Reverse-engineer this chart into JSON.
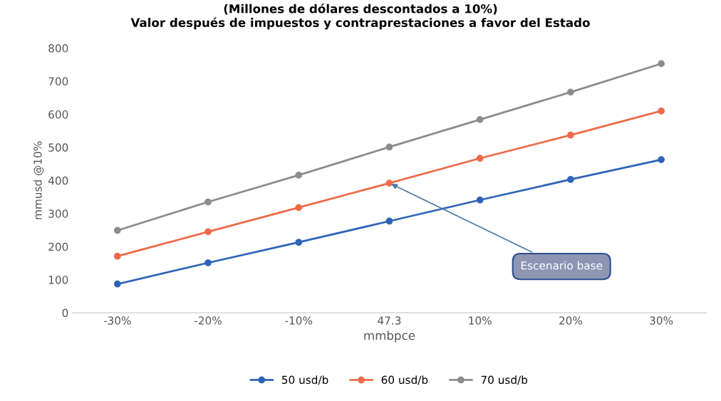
{
  "chart_data": {
    "type": "line",
    "title": "(Millones de dólares descontados a 10%)\nValor después de impuestos y contraprestaciones a favor del Estado",
    "xlabel": "mmbpce",
    "ylabel": "mmusd @10%",
    "categories": [
      "-30%",
      "-20%",
      "-10%",
      "47.3",
      "10%",
      "20%",
      "30%"
    ],
    "series": [
      {
        "name": "50 usd/b",
        "color": "#2e64b8",
        "values": [
          87,
          151,
          213,
          277,
          341,
          403,
          463
        ]
      },
      {
        "name": "60 usd/b",
        "color": "#ef6a4a",
        "values": [
          171,
          245,
          318,
          392,
          467,
          537,
          610
        ]
      },
      {
        "name": "70 usd/b",
        "color": "#8c8c8c",
        "values": [
          249,
          335,
          416,
          501,
          584,
          667,
          753
        ]
      }
    ],
    "ylim": [
      0,
      800
    ],
    "yticks": [
      0,
      100,
      200,
      300,
      400,
      500,
      600,
      700,
      800
    ],
    "annotations": [
      {
        "text": "Escenario base",
        "x": "47.3",
        "y": 392
      }
    ],
    "marker": "circle",
    "line_style": "solid",
    "grid": false,
    "legend": "bottom"
  }
}
